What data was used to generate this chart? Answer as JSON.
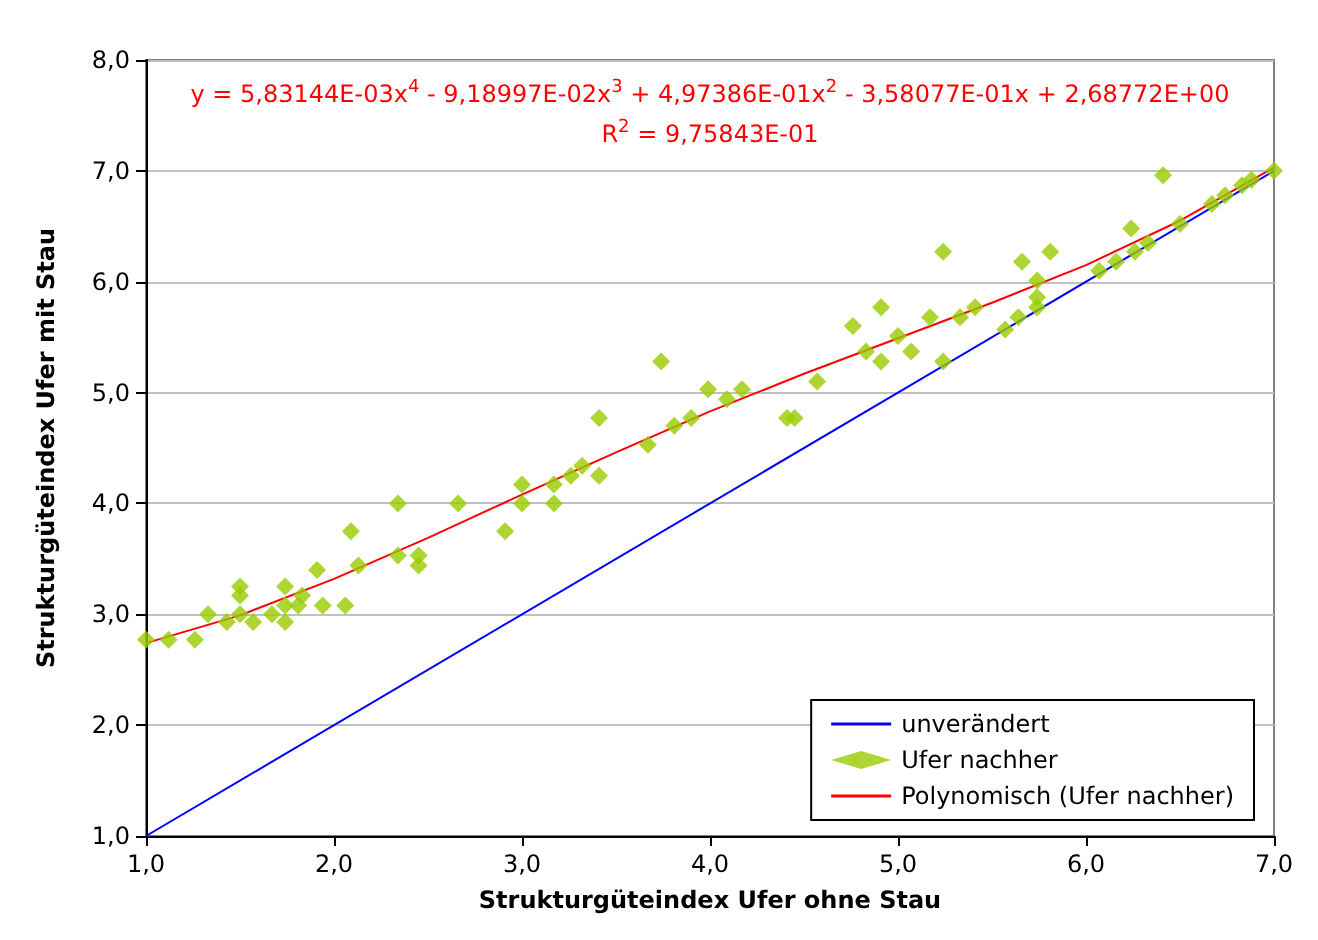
{
  "chart_data": {
    "type": "scatter",
    "xlabel": "Strukturgüteindex Ufer ohne Stau",
    "ylabel": "Strukturgüteindex Ufer mit Stau",
    "xlim": [
      1,
      7
    ],
    "ylim": [
      1,
      8
    ],
    "xticks": [
      {
        "value": 1,
        "label": "1,0"
      },
      {
        "value": 2,
        "label": "2,0"
      },
      {
        "value": 3,
        "label": "3,0"
      },
      {
        "value": 4,
        "label": "4,0"
      },
      {
        "value": 5,
        "label": "5,0"
      },
      {
        "value": 6,
        "label": "6,0"
      },
      {
        "value": 7,
        "label": "7,0"
      }
    ],
    "yticks": [
      {
        "value": 1,
        "label": "1,0"
      },
      {
        "value": 2,
        "label": "2,0"
      },
      {
        "value": 3,
        "label": "3,0"
      },
      {
        "value": 4,
        "label": "4,0"
      },
      {
        "value": 5,
        "label": "5,0"
      },
      {
        "value": 6,
        "label": "6,0"
      },
      {
        "value": 7,
        "label": "7,0"
      },
      {
        "value": 8,
        "label": "8,0"
      }
    ],
    "grid": "y",
    "legend": "bottom right",
    "annotations": [
      "y = 5,83144E-03x$^{4}$ - 9,18997E-02x$^{3}$ + 4,97386E-01x$^{2}$ - 3,58077E-01x + 2,68772E+00",
      "R$^{2}$ = 9,75843E-01"
    ],
    "series": [
      {
        "name": "unverändert",
        "type": "line",
        "marker": "none",
        "color": "#0000ff",
        "x": [
          1,
          7
        ],
        "values": [
          1,
          7
        ]
      },
      {
        "name": "Ufer nachher",
        "type": "scatter",
        "marker": "diamond",
        "color": "#99cc00",
        "x": [
          1.0,
          1.12,
          1.26,
          1.33,
          1.43,
          1.5,
          1.5,
          1.5,
          1.57,
          1.67,
          1.74,
          1.74,
          1.74,
          1.81,
          1.83,
          1.91,
          1.94,
          2.06,
          2.09,
          2.13,
          2.34,
          2.34,
          2.45,
          2.45,
          2.66,
          2.91,
          3.0,
          3.0,
          3.17,
          3.17,
          3.26,
          3.32,
          3.41,
          3.41,
          3.67,
          3.74,
          3.81,
          3.9,
          3.99,
          4.09,
          4.17,
          4.41,
          4.45,
          4.57,
          4.76,
          4.83,
          4.91,
          4.91,
          5.0,
          5.07,
          5.17,
          5.24,
          5.24,
          5.33,
          5.41,
          5.57,
          5.64,
          5.66,
          5.74,
          5.74,
          5.74,
          5.81,
          6.07,
          6.16,
          6.24,
          6.26,
          6.33,
          6.41,
          6.5,
          6.67,
          6.74,
          6.83,
          6.88,
          7.0
        ],
        "values": [
          2.77,
          2.77,
          2.77,
          3.0,
          2.93,
          3.25,
          3.17,
          3.0,
          2.93,
          3.0,
          3.25,
          2.93,
          3.08,
          3.08,
          3.17,
          3.4,
          3.08,
          3.08,
          3.75,
          3.44,
          4.0,
          3.53,
          3.53,
          3.44,
          4.0,
          3.75,
          4.0,
          4.17,
          4.0,
          4.17,
          4.25,
          4.34,
          4.25,
          4.77,
          4.53,
          5.28,
          4.7,
          4.77,
          5.03,
          4.94,
          5.03,
          4.77,
          4.77,
          5.1,
          5.6,
          5.37,
          5.77,
          5.28,
          5.51,
          5.37,
          5.68,
          6.27,
          5.28,
          5.68,
          5.77,
          5.57,
          5.68,
          6.18,
          5.86,
          6.01,
          5.77,
          6.27,
          6.1,
          6.18,
          6.48,
          6.27,
          6.35,
          6.96,
          6.52,
          6.7,
          6.78,
          6.87,
          6.92,
          7.0
        ]
      },
      {
        "name": "Polynomisch (Ufer nachher)",
        "type": "line",
        "marker": "none",
        "color": "#ff0000",
        "x": [
          1,
          1.5,
          2,
          2.5,
          3,
          3.5,
          4,
          4.5,
          5,
          5.5,
          6,
          6.5,
          7
        ],
        "values": [
          2.74,
          2.99,
          3.32,
          3.69,
          4.08,
          4.46,
          4.83,
          5.17,
          5.49,
          5.81,
          6.15,
          6.55,
          7.03
        ]
      }
    ]
  }
}
